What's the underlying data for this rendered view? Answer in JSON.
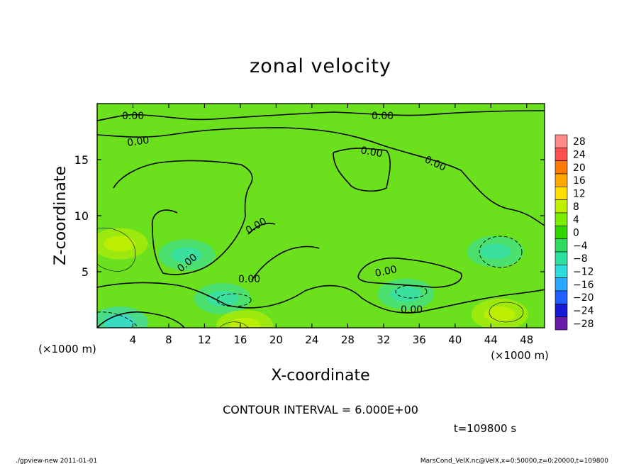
{
  "chart_data": {
    "type": "heatmap",
    "title": "zonal velocity",
    "xlabel": "X-coordinate",
    "ylabel": "Z-coordinate",
    "x_unit_label": "(×1000 m)",
    "z_unit_label": "(×1000 m)",
    "xlim": [
      0,
      50
    ],
    "ylim": [
      0,
      20
    ],
    "x_ticks": [
      "4",
      "8",
      "12",
      "16",
      "20",
      "24",
      "28",
      "32",
      "36",
      "40",
      "44",
      "48"
    ],
    "y_ticks": [
      "5",
      "10",
      "15"
    ],
    "colorbar_labels": [
      "28",
      "24",
      "20",
      "16",
      "12",
      "8",
      "4",
      "0",
      "−4",
      "−8",
      "−12",
      "−16",
      "−20",
      "−24",
      "−28"
    ],
    "colorbar_colors": [
      "#ff8a8a",
      "#ff4f4f",
      "#ff7a00",
      "#ffa800",
      "#ffe000",
      "#c0f000",
      "#7cec00",
      "#33d600",
      "#2fdb5f",
      "#2ee0a0",
      "#2fdcdc",
      "#2aa8ff",
      "#2060ff",
      "#1818d8",
      "#6a1aa8"
    ],
    "contour_labels": [
      "0.00",
      "0.00",
      "0.00",
      "0.00",
      "0.00",
      "0.00",
      "0.00",
      "0.00",
      "0.00",
      "0.00"
    ],
    "contour_interval": "CONTOUR INTERVAL = 6.000E+00",
    "time_label": "t=109800 s",
    "footer_left": "./gpview-new  2011-01-01",
    "footer_right": "MarsCond_VelX.nc@VelX,x=0:50000,z=0:20000,t=109800",
    "field_features": [
      {
        "x": 2.5,
        "z": 7.5,
        "value": 8
      },
      {
        "x": 10,
        "z": 6.5,
        "value": -8
      },
      {
        "x": 14,
        "z": 2.6,
        "value": -8
      },
      {
        "x": 34.5,
        "z": 3.0,
        "value": -8
      },
      {
        "x": 44.5,
        "z": 6.8,
        "value": -8
      },
      {
        "x": 45,
        "z": 1.2,
        "value": 8
      },
      {
        "x": 16.5,
        "z": 0.2,
        "value": 8
      },
      {
        "x": 2.5,
        "z": 0.5,
        "value": -10
      }
    ]
  }
}
